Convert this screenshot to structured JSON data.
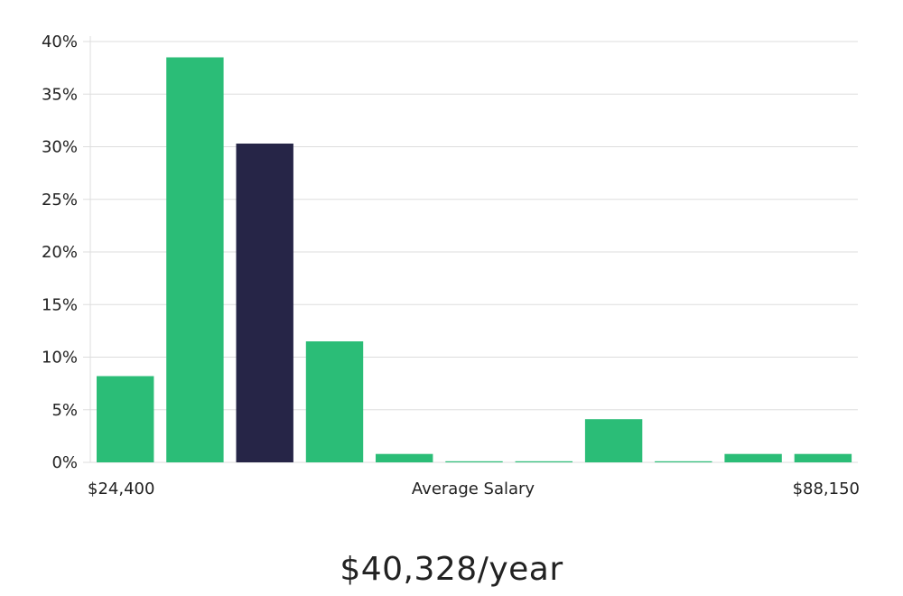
{
  "chart_data": {
    "type": "bar",
    "title": "",
    "xlabel": "Average Salary",
    "ylabel": "",
    "x_start_label": "$24,400",
    "x_end_label": "$88,150",
    "ylim": [
      0,
      40
    ],
    "yticks": [
      "0%",
      "5%",
      "10%",
      "15%",
      "20%",
      "25%",
      "30%",
      "35%",
      "40%"
    ],
    "values": [
      8.2,
      38.5,
      30.3,
      11.5,
      0.8,
      0.1,
      0.1,
      4.1,
      0.1,
      0.8,
      0.8
    ],
    "highlight_index": 2,
    "grid": true,
    "colors": {
      "bar": "#2bbd77",
      "highlight": "#262547",
      "grid": "#dddddd"
    }
  },
  "summary": {
    "salary": "$40,328/year"
  }
}
